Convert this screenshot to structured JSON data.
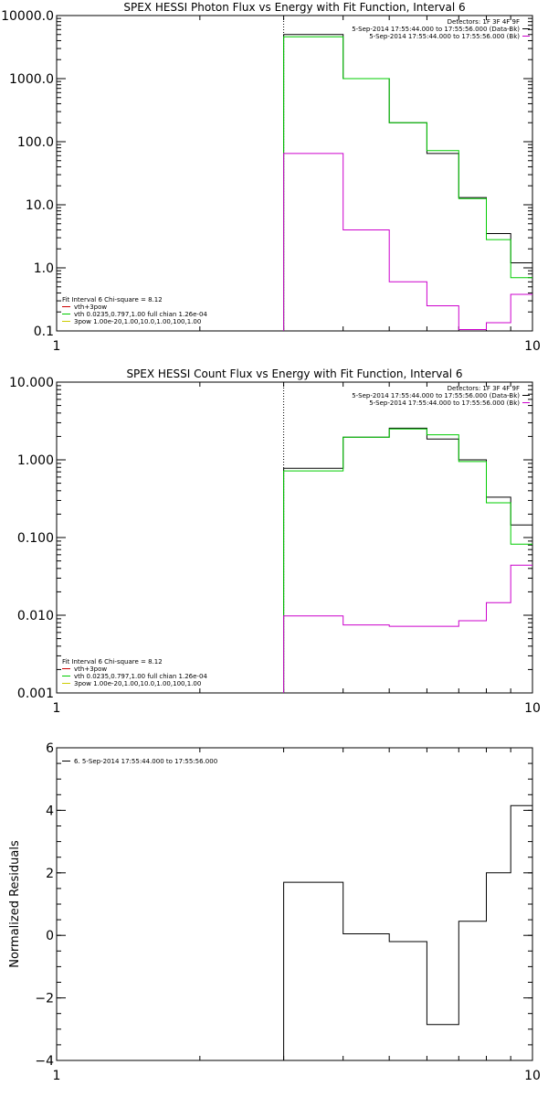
{
  "chart_data": [
    {
      "type": "line",
      "title": "SPEX HESSI Photon Flux vs Energy with Fit Function, Interval 6",
      "xlabel": "",
      "ylabel": "",
      "xscale": "log",
      "yscale": "log",
      "xlim": [
        1,
        10
      ],
      "ylim": [
        0.1,
        10000
      ],
      "x_tick_labels": [
        "1",
        "10"
      ],
      "y_ticks": [
        0.1,
        1,
        10,
        100,
        1000,
        10000
      ],
      "y_tick_labels": [
        "0.1",
        "1.0",
        "10.0",
        "100.0",
        "1000.0",
        "10000.0"
      ],
      "dotted_x": 3,
      "bin_edges": [
        3,
        4,
        5,
        6,
        7,
        8,
        9,
        10
      ],
      "series": [
        {
          "color": "#000000",
          "values": [
            5000,
            1000,
            200,
            65,
            13,
            3.5,
            1.2
          ]
        },
        {
          "color": "#00cc00",
          "values": [
            4600,
            1000,
            200,
            72,
            12.5,
            2.8,
            0.7
          ]
        },
        {
          "color": "#cc00cc",
          "values": [
            65,
            4,
            0.6,
            0.25,
            0.105,
            0.135,
            0.38
          ]
        }
      ],
      "legend_right": [
        {
          "text": "Detectors: 1F 3F 4F 9F",
          "color": ""
        },
        {
          "text": "5-Sep-2014 17:55:44.000 to 17:55:56.000 (Data-Bk)",
          "color": "#000000"
        },
        {
          "text": "5-Sep-2014 17:55:44.000 to 17:55:56.000 (Bk)",
          "color": "#cc00cc"
        }
      ],
      "legend_left": [
        {
          "text": "Fit Interval 6   Chi-square = 8.12",
          "color": ""
        },
        {
          "text": "vth+3pow",
          "color": "#cc0000"
        },
        {
          "text": "vth 0.0235,0.797,1.00  full chian 1.26e-04",
          "color": "#00cc00"
        },
        {
          "text": "3pow 1.00e-20,1.00,10.0,1.00,100,1.00",
          "color": "#cccc00"
        }
      ]
    },
    {
      "type": "line",
      "title": "SPEX HESSI Count Flux vs Energy with Fit Function, Interval 6",
      "xlabel": "",
      "ylabel": "",
      "xscale": "log",
      "yscale": "log",
      "xlim": [
        1,
        10
      ],
      "ylim": [
        0.001,
        10
      ],
      "x_tick_labels": [
        "1",
        "10"
      ],
      "y_ticks": [
        0.001,
        0.01,
        0.1,
        1,
        10
      ],
      "y_tick_labels": [
        "0.001",
        "0.010",
        "0.100",
        "1.000",
        "10.000"
      ],
      "dotted_x": 3,
      "bin_edges": [
        3,
        4,
        5,
        6,
        7,
        8,
        9,
        10
      ],
      "series": [
        {
          "color": "#000000",
          "values": [
            0.78,
            1.95,
            2.55,
            1.85,
            1.0,
            0.33,
            0.145
          ]
        },
        {
          "color": "#00cc00",
          "values": [
            0.72,
            1.95,
            2.5,
            2.1,
            0.95,
            0.28,
            0.082
          ]
        },
        {
          "color": "#cc00cc",
          "values": [
            0.0098,
            0.0075,
            0.0072,
            0.0072,
            0.0085,
            0.0145,
            0.044
          ]
        }
      ],
      "legend_right": [
        {
          "text": "Detectors: 1F 3F 4F 9F",
          "color": ""
        },
        {
          "text": "5-Sep-2014 17:55:44.000 to 17:55:56.000 (Data-Bk)",
          "color": "#000000"
        },
        {
          "text": "5-Sep-2014 17:55:44.000 to 17:55:56.000 (Bk)",
          "color": "#cc00cc"
        }
      ],
      "legend_left": [
        {
          "text": "Fit Interval 6   Chi-square = 8.12",
          "color": ""
        },
        {
          "text": "vth+3pow",
          "color": "#cc0000"
        },
        {
          "text": "vth 0.0235,0.797,1.00  full chian 1.26e-04",
          "color": "#00cc00"
        },
        {
          "text": "3pow 1.00e-20,1.00,10.0,1.00,100,1.00",
          "color": "#cccc00"
        }
      ]
    },
    {
      "type": "line",
      "title": "",
      "xlabel": "",
      "ylabel": "Normalized Residuals",
      "xscale": "log",
      "yscale": "linear",
      "xlim": [
        1,
        10
      ],
      "ylim": [
        -4,
        6
      ],
      "x_tick_labels": [
        "1",
        "10"
      ],
      "y_ticks": [
        -4,
        -2,
        0,
        2,
        4,
        6
      ],
      "y_tick_labels": [
        "−4",
        "−2",
        "0",
        "2",
        "4",
        "6"
      ],
      "dotted_x": null,
      "bin_edges": [
        3,
        4,
        5,
        6,
        7,
        8,
        9,
        10
      ],
      "drop_to_bottom": true,
      "series": [
        {
          "color": "#000000",
          "values": [
            1.7,
            0.05,
            -0.2,
            -2.85,
            0.45,
            2.0,
            4.15
          ]
        }
      ],
      "legend_right": [],
      "legend_left": [],
      "legend_top": [
        {
          "text": "6.  5-Sep-2014 17:55:44.000 to 17:55:56.000",
          "color": "#000000"
        }
      ]
    }
  ]
}
